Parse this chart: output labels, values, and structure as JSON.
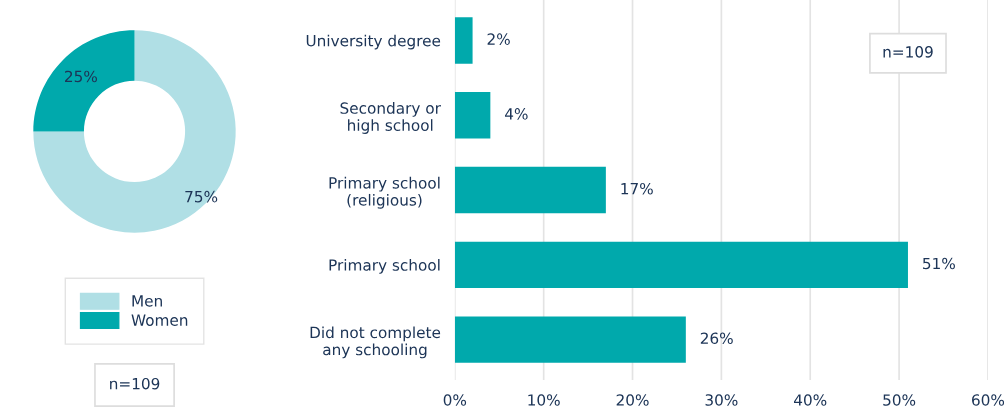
{
  "chart_data": [
    {
      "type": "donut",
      "categories": [
        "Men",
        "Women"
      ],
      "values": [
        75,
        25
      ],
      "colors": [
        "#b0dfe5",
        "#00a9ac"
      ],
      "value_labels": [
        "75%",
        "25%"
      ],
      "legend": "bottom",
      "annotations": [
        "n=109"
      ]
    },
    {
      "type": "bar",
      "orientation": "horizontal",
      "categories": [
        "University degree",
        "Secondary or\nhigh school",
        "Primary school\n(religious)",
        "Primary school",
        "Did not complete\nany schooling"
      ],
      "values": [
        2,
        4,
        17,
        51,
        26
      ],
      "color": "#00a9ac",
      "value_labels": [
        "2%",
        "4%",
        "17%",
        "51%",
        "26%"
      ],
      "xlim": [
        0,
        60
      ],
      "xticks": [
        {
          "value": 0,
          "label": "0%"
        },
        {
          "value": 10,
          "label": "10%"
        },
        {
          "value": 20,
          "label": "20%"
        },
        {
          "value": 30,
          "label": "30%"
        },
        {
          "value": 40,
          "label": "40%"
        },
        {
          "value": 50,
          "label": "50%"
        },
        {
          "value": 60,
          "label": "60%"
        }
      ],
      "grid": "x",
      "annotations": [
        "n=109"
      ]
    }
  ]
}
